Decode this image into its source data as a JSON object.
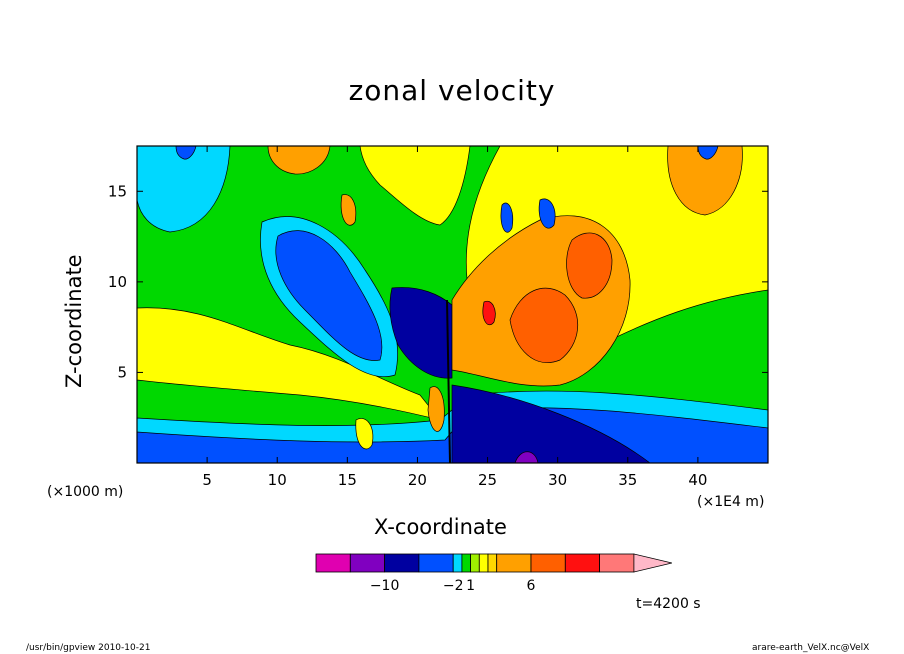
{
  "chart_data": {
    "type": "heatmap",
    "title": "zonal velocity",
    "xlabel": "X-coordinate",
    "ylabel": "Z-coordinate",
    "x_unit": "(×1E4 m)",
    "y_unit": "(×1000 m)",
    "xlim": [
      0,
      45
    ],
    "ylim": [
      0,
      17.5
    ],
    "x_ticks": [
      5,
      10,
      15,
      20,
      25,
      30,
      35,
      40
    ],
    "y_ticks": [
      5,
      10,
      15
    ],
    "colorbar": {
      "levels": [
        -14,
        -10,
        -6,
        -2,
        0,
        1,
        2,
        3,
        4,
        6,
        8,
        10,
        12
      ],
      "colors": [
        "#e000b0",
        "#8000c0",
        "#0000a0",
        "#0050ff",
        "#00d8ff",
        "#00d800",
        "#a0f000",
        "#ffff00",
        "#ffd800",
        "#ffa000",
        "#ff6000",
        "#ff1010",
        "#ff7878",
        "#ffb8c8"
      ],
      "tick_labels": [
        {
          "value": -10,
          "label": "−10"
        },
        {
          "value": -2,
          "label": "−2"
        },
        {
          "value": 1,
          "label": "1"
        },
        {
          "value": 6,
          "label": "6"
        }
      ]
    },
    "annotation": "t=4200 s"
  },
  "footer": {
    "left": "/usr/bin/gpview  2010-10-21",
    "right": "arare-earth_VelX.nc@VelX"
  }
}
